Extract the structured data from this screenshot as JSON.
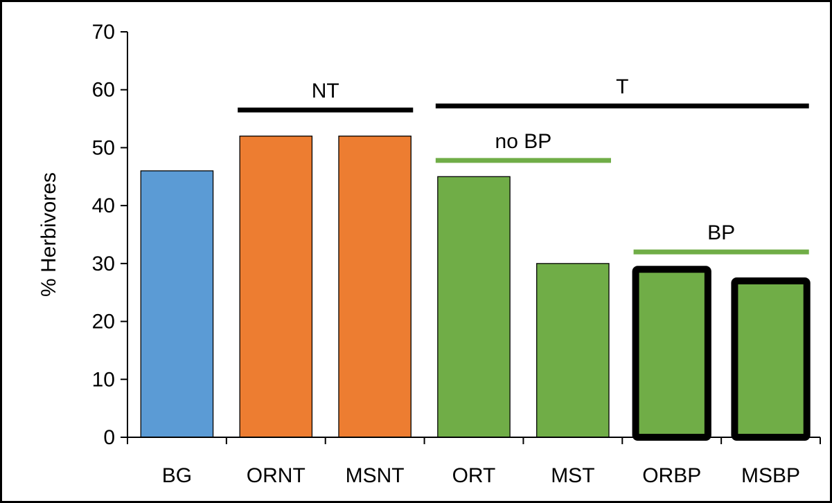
{
  "chart_data": {
    "type": "bar",
    "title": "",
    "xlabel": "",
    "ylabel": "% Herbivores",
    "ylim": [
      0,
      70
    ],
    "yticks": [
      0,
      10,
      20,
      30,
      40,
      50,
      60,
      70
    ],
    "grid": false,
    "legend": "none",
    "categories": [
      "BG",
      "ORNT",
      "MSNT",
      "ORT",
      "MST",
      "ORBP",
      "MSBP"
    ],
    "values": [
      46,
      52,
      52,
      45,
      30,
      29,
      27
    ],
    "bar_colors": [
      "#5b9bd5",
      "#ed7d31",
      "#ed7d31",
      "#70ad47",
      "#70ad47",
      "#70ad47",
      "#70ad47"
    ],
    "bold_outline": [
      false,
      false,
      false,
      false,
      false,
      true,
      true
    ],
    "annotations": [
      {
        "text": "NT",
        "from": "ORNT",
        "to": "MSNT",
        "level": 56.5,
        "color": "#000000"
      },
      {
        "text": "T",
        "from": "ORT",
        "to": "MSBP",
        "level": 57.2,
        "color": "#000000"
      },
      {
        "text": "no BP",
        "from": "ORT",
        "to": "MST",
        "level": 47.8,
        "color": "#70ad47"
      },
      {
        "text": "BP",
        "from": "ORBP",
        "to": "MSBP",
        "level": 32,
        "color": "#70ad47"
      }
    ]
  }
}
